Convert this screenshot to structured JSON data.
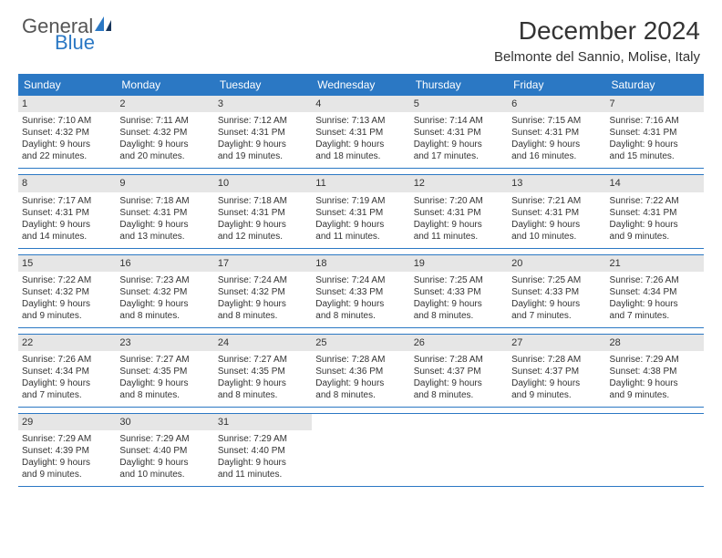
{
  "brand": {
    "general": "General",
    "blue": "Blue"
  },
  "title": "December 2024",
  "location": "Belmonte del Sannio, Molise, Italy",
  "colors": {
    "header_bg": "#2b78c4",
    "daynum_bg": "#e6e6e6",
    "rule": "#2b78c4",
    "page_bg": "#ffffff",
    "text": "#333333",
    "brand_blue": "#2b78c4",
    "brand_gray": "#555555"
  },
  "days_of_week": [
    "Sunday",
    "Monday",
    "Tuesday",
    "Wednesday",
    "Thursday",
    "Friday",
    "Saturday"
  ],
  "weeks": [
    [
      {
        "n": "1",
        "sr": "Sunrise: 7:10 AM",
        "ss": "Sunset: 4:32 PM",
        "d1": "Daylight: 9 hours",
        "d2": "and 22 minutes."
      },
      {
        "n": "2",
        "sr": "Sunrise: 7:11 AM",
        "ss": "Sunset: 4:32 PM",
        "d1": "Daylight: 9 hours",
        "d2": "and 20 minutes."
      },
      {
        "n": "3",
        "sr": "Sunrise: 7:12 AM",
        "ss": "Sunset: 4:31 PM",
        "d1": "Daylight: 9 hours",
        "d2": "and 19 minutes."
      },
      {
        "n": "4",
        "sr": "Sunrise: 7:13 AM",
        "ss": "Sunset: 4:31 PM",
        "d1": "Daylight: 9 hours",
        "d2": "and 18 minutes."
      },
      {
        "n": "5",
        "sr": "Sunrise: 7:14 AM",
        "ss": "Sunset: 4:31 PM",
        "d1": "Daylight: 9 hours",
        "d2": "and 17 minutes."
      },
      {
        "n": "6",
        "sr": "Sunrise: 7:15 AM",
        "ss": "Sunset: 4:31 PM",
        "d1": "Daylight: 9 hours",
        "d2": "and 16 minutes."
      },
      {
        "n": "7",
        "sr": "Sunrise: 7:16 AM",
        "ss": "Sunset: 4:31 PM",
        "d1": "Daylight: 9 hours",
        "d2": "and 15 minutes."
      }
    ],
    [
      {
        "n": "8",
        "sr": "Sunrise: 7:17 AM",
        "ss": "Sunset: 4:31 PM",
        "d1": "Daylight: 9 hours",
        "d2": "and 14 minutes."
      },
      {
        "n": "9",
        "sr": "Sunrise: 7:18 AM",
        "ss": "Sunset: 4:31 PM",
        "d1": "Daylight: 9 hours",
        "d2": "and 13 minutes."
      },
      {
        "n": "10",
        "sr": "Sunrise: 7:18 AM",
        "ss": "Sunset: 4:31 PM",
        "d1": "Daylight: 9 hours",
        "d2": "and 12 minutes."
      },
      {
        "n": "11",
        "sr": "Sunrise: 7:19 AM",
        "ss": "Sunset: 4:31 PM",
        "d1": "Daylight: 9 hours",
        "d2": "and 11 minutes."
      },
      {
        "n": "12",
        "sr": "Sunrise: 7:20 AM",
        "ss": "Sunset: 4:31 PM",
        "d1": "Daylight: 9 hours",
        "d2": "and 11 minutes."
      },
      {
        "n": "13",
        "sr": "Sunrise: 7:21 AM",
        "ss": "Sunset: 4:31 PM",
        "d1": "Daylight: 9 hours",
        "d2": "and 10 minutes."
      },
      {
        "n": "14",
        "sr": "Sunrise: 7:22 AM",
        "ss": "Sunset: 4:31 PM",
        "d1": "Daylight: 9 hours",
        "d2": "and 9 minutes."
      }
    ],
    [
      {
        "n": "15",
        "sr": "Sunrise: 7:22 AM",
        "ss": "Sunset: 4:32 PM",
        "d1": "Daylight: 9 hours",
        "d2": "and 9 minutes."
      },
      {
        "n": "16",
        "sr": "Sunrise: 7:23 AM",
        "ss": "Sunset: 4:32 PM",
        "d1": "Daylight: 9 hours",
        "d2": "and 8 minutes."
      },
      {
        "n": "17",
        "sr": "Sunrise: 7:24 AM",
        "ss": "Sunset: 4:32 PM",
        "d1": "Daylight: 9 hours",
        "d2": "and 8 minutes."
      },
      {
        "n": "18",
        "sr": "Sunrise: 7:24 AM",
        "ss": "Sunset: 4:33 PM",
        "d1": "Daylight: 9 hours",
        "d2": "and 8 minutes."
      },
      {
        "n": "19",
        "sr": "Sunrise: 7:25 AM",
        "ss": "Sunset: 4:33 PM",
        "d1": "Daylight: 9 hours",
        "d2": "and 8 minutes."
      },
      {
        "n": "20",
        "sr": "Sunrise: 7:25 AM",
        "ss": "Sunset: 4:33 PM",
        "d1": "Daylight: 9 hours",
        "d2": "and 7 minutes."
      },
      {
        "n": "21",
        "sr": "Sunrise: 7:26 AM",
        "ss": "Sunset: 4:34 PM",
        "d1": "Daylight: 9 hours",
        "d2": "and 7 minutes."
      }
    ],
    [
      {
        "n": "22",
        "sr": "Sunrise: 7:26 AM",
        "ss": "Sunset: 4:34 PM",
        "d1": "Daylight: 9 hours",
        "d2": "and 7 minutes."
      },
      {
        "n": "23",
        "sr": "Sunrise: 7:27 AM",
        "ss": "Sunset: 4:35 PM",
        "d1": "Daylight: 9 hours",
        "d2": "and 8 minutes."
      },
      {
        "n": "24",
        "sr": "Sunrise: 7:27 AM",
        "ss": "Sunset: 4:35 PM",
        "d1": "Daylight: 9 hours",
        "d2": "and 8 minutes."
      },
      {
        "n": "25",
        "sr": "Sunrise: 7:28 AM",
        "ss": "Sunset: 4:36 PM",
        "d1": "Daylight: 9 hours",
        "d2": "and 8 minutes."
      },
      {
        "n": "26",
        "sr": "Sunrise: 7:28 AM",
        "ss": "Sunset: 4:37 PM",
        "d1": "Daylight: 9 hours",
        "d2": "and 8 minutes."
      },
      {
        "n": "27",
        "sr": "Sunrise: 7:28 AM",
        "ss": "Sunset: 4:37 PM",
        "d1": "Daylight: 9 hours",
        "d2": "and 9 minutes."
      },
      {
        "n": "28",
        "sr": "Sunrise: 7:29 AM",
        "ss": "Sunset: 4:38 PM",
        "d1": "Daylight: 9 hours",
        "d2": "and 9 minutes."
      }
    ],
    [
      {
        "n": "29",
        "sr": "Sunrise: 7:29 AM",
        "ss": "Sunset: 4:39 PM",
        "d1": "Daylight: 9 hours",
        "d2": "and 9 minutes."
      },
      {
        "n": "30",
        "sr": "Sunrise: 7:29 AM",
        "ss": "Sunset: 4:40 PM",
        "d1": "Daylight: 9 hours",
        "d2": "and 10 minutes."
      },
      {
        "n": "31",
        "sr": "Sunrise: 7:29 AM",
        "ss": "Sunset: 4:40 PM",
        "d1": "Daylight: 9 hours",
        "d2": "and 11 minutes."
      },
      null,
      null,
      null,
      null
    ]
  ]
}
